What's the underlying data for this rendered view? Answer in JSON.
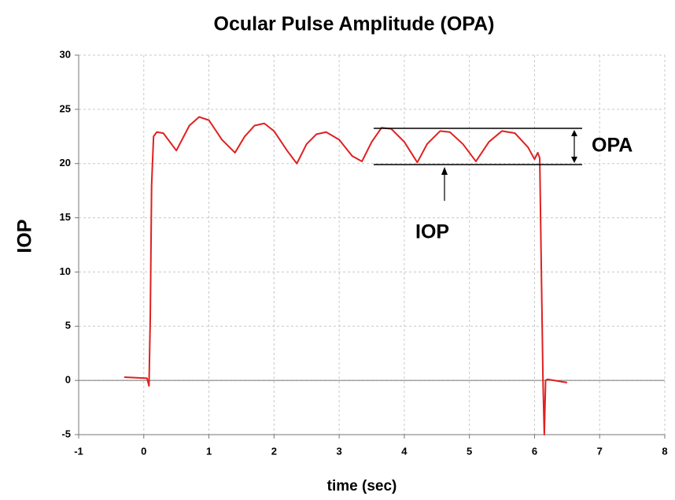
{
  "chart_data": {
    "type": "line",
    "title": "Ocular Pulse Amplitude (OPA)",
    "xlabel": "time (sec)",
    "ylabel": "IOP",
    "annotations": [
      "OPA",
      "IOP"
    ],
    "xlim": [
      -1,
      8
    ],
    "xticks": [
      -1,
      0,
      1,
      2,
      3,
      4,
      5,
      6,
      7,
      8
    ],
    "ylim": [
      -5,
      30
    ],
    "yticks": [
      -5,
      0,
      5,
      10,
      15,
      20,
      25,
      30
    ],
    "grid": true,
    "series": [
      {
        "color": "#e02020",
        "x": [
          -0.3,
          0.05,
          0.08,
          0.1,
          0.12,
          0.15,
          0.2,
          0.3,
          0.5,
          0.7,
          0.85,
          1.0,
          1.2,
          1.4,
          1.55,
          1.7,
          1.85,
          2.0,
          2.2,
          2.35,
          2.5,
          2.65,
          2.8,
          3.0,
          3.2,
          3.35,
          3.5,
          3.65,
          3.8,
          4.0,
          4.2,
          4.35,
          4.55,
          4.7,
          4.9,
          5.1,
          5.3,
          5.5,
          5.7,
          5.9,
          6.0,
          6.05,
          6.08,
          6.1,
          6.13,
          6.15,
          6.17,
          6.2,
          6.5
        ],
        "values": [
          0.3,
          0.2,
          -0.5,
          6,
          18,
          22.5,
          22.9,
          22.8,
          21.2,
          23.5,
          24.3,
          24.0,
          22.2,
          21.0,
          22.5,
          23.5,
          23.7,
          23.0,
          21.2,
          20.0,
          21.8,
          22.7,
          22.9,
          22.2,
          20.7,
          20.2,
          22.0,
          23.3,
          23.2,
          22.0,
          20.1,
          21.8,
          23.0,
          22.9,
          21.8,
          20.2,
          22.0,
          23.0,
          22.8,
          21.5,
          20.4,
          21.0,
          20.5,
          12,
          0,
          -5,
          0,
          0.1,
          -0.2
        ]
      }
    ]
  }
}
